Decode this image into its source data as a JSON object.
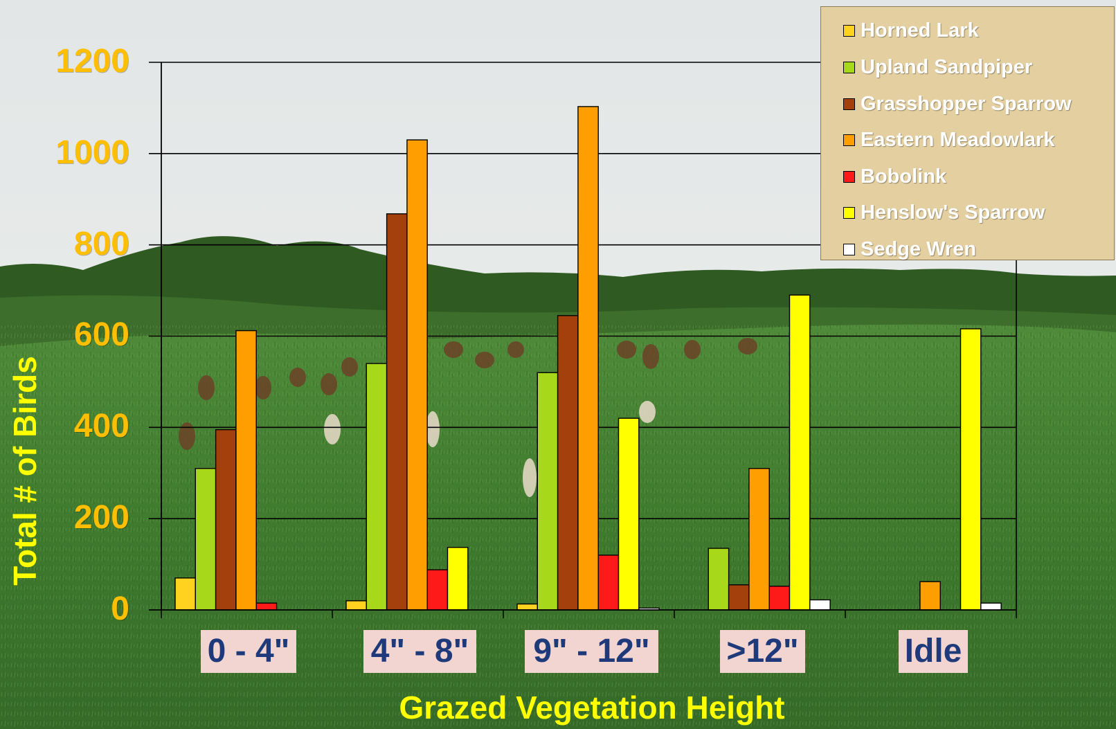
{
  "chart_data": {
    "type": "bar",
    "xlabel": "Grazed Vegetation Height",
    "ylabel": "Total # of Birds",
    "ylim": [
      0,
      1200
    ],
    "yticks": [
      "0",
      "200",
      "400",
      "600",
      "800",
      "1000",
      "1200"
    ],
    "grid": true,
    "legend_position": "top-right",
    "categories": [
      "0 - 4\"",
      "4\" - 8\"",
      "9\" - 12\"",
      ">12\"",
      "Idle"
    ],
    "series": [
      {
        "name": "Horned Lark",
        "color": "#ffd21f",
        "values": [
          70,
          20,
          13,
          0,
          0
        ]
      },
      {
        "name": "Upland Sandpiper",
        "color": "#a8d81a",
        "values": [
          310,
          540,
          520,
          135,
          0
        ]
      },
      {
        "name": "Grasshopper Sparrow",
        "color": "#a4400b",
        "values": [
          395,
          868,
          645,
          55,
          0
        ]
      },
      {
        "name": "Eastern Meadowlark",
        "color": "#ff9e00",
        "values": [
          612,
          1030,
          1103,
          310,
          62
        ]
      },
      {
        "name": "Bobolink",
        "color": "#ff1a1a",
        "values": [
          15,
          88,
          120,
          52,
          0
        ]
      },
      {
        "name": "Henslow's Sparrow",
        "color": "#ffff00",
        "values": [
          0,
          137,
          420,
          690,
          616
        ]
      },
      {
        "name": "Sedge Wren",
        "color": "#ffffff",
        "values": [
          0,
          0,
          4,
          22,
          15
        ]
      }
    ]
  }
}
